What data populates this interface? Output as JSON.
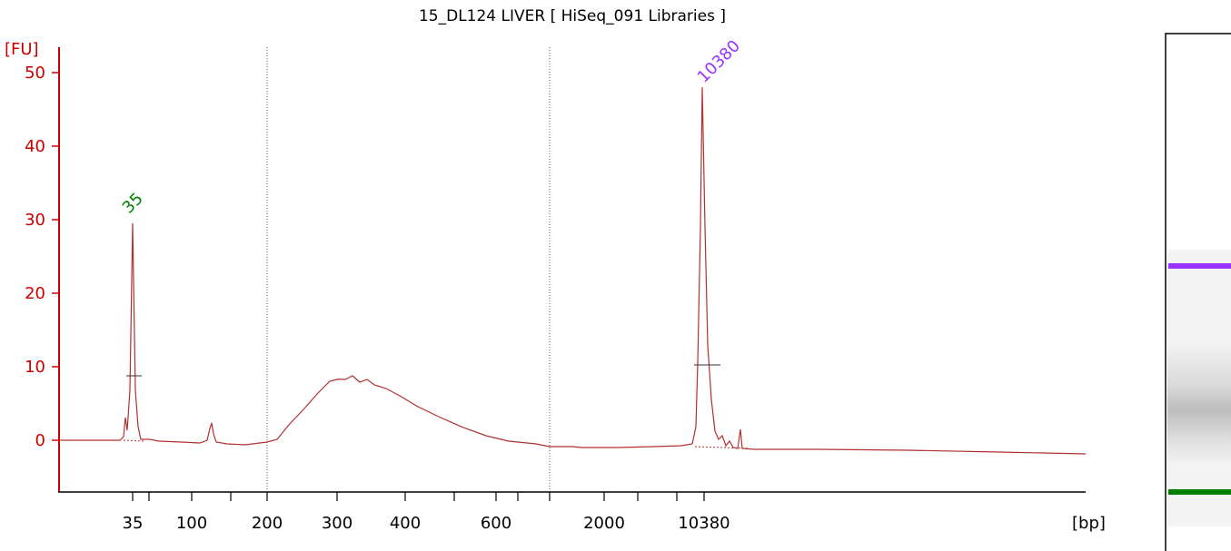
{
  "chart_data": {
    "type": "line",
    "title": "15_DL124 LIVER  [ HiSeq_091 Libraries ]",
    "ylabel": "[FU]",
    "xlabel": "[bp]",
    "ylim": [
      -7,
      52
    ],
    "yticks": [
      0,
      10,
      20,
      30,
      40,
      50
    ],
    "xticks": [
      "35",
      "100",
      "200",
      "300",
      "400",
      "600",
      "2000",
      "10380"
    ],
    "x_scale": "non-linear (electropherogram sizing)",
    "grid": false,
    "colors": {
      "trace": "#b03030",
      "axis": "#cc0000",
      "marker_lower": "#008000",
      "marker_upper": "#9933ff"
    },
    "peak_labels": [
      {
        "text": "35",
        "color": "#008000"
      },
      {
        "text": "10380",
        "color": "#9933ff"
      }
    ],
    "region_divider_x_bp": [
      200,
      1000
    ],
    "series": [
      {
        "values": [
          [
            35,
            29.5
          ],
          [
            100,
            -0.3
          ],
          [
            150,
            2
          ],
          [
            200,
            -0.3
          ],
          [
            250,
            4
          ],
          [
            300,
            8.3
          ],
          [
            350,
            8
          ],
          [
            400,
            6.5
          ],
          [
            500,
            3.5
          ],
          [
            600,
            1.2
          ],
          [
            1000,
            -0.9
          ],
          [
            2000,
            -1
          ],
          [
            10380,
            48
          ],
          [
            15000,
            -1.5
          ],
          [
            30000,
            -1.8
          ]
        ]
      }
    ],
    "gel_lane": {
      "bands": [
        {
          "name": "upper marker",
          "color": "#9933ff"
        },
        {
          "name": "library smear",
          "color": "#b0b0b0"
        },
        {
          "name": "lower marker",
          "color": "#008000"
        }
      ]
    }
  }
}
